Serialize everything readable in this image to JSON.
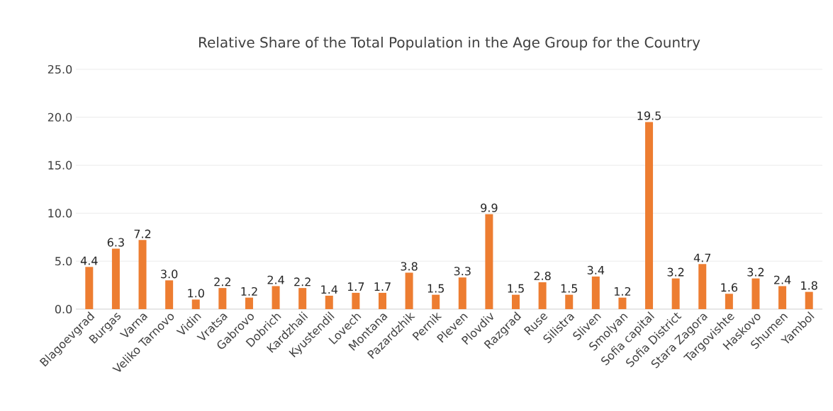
{
  "chart_data": {
    "type": "bar",
    "title": "Relative Share of the Total Population in the Age Group for the Country",
    "categories": [
      "Blagoevgrad",
      "Burgas",
      "Varna",
      "Veliko Tarnovo",
      "Vidin",
      "Vratsa",
      "Gabrovo",
      "Dobrich",
      "Kardzhali",
      "Kyustendil",
      "Lovech",
      "Montana",
      "Pazardzhik",
      "Pernik",
      "Pleven",
      "Plovdiv",
      "Razgrad",
      "Ruse",
      "Silistra",
      "Sliven",
      "Smolyan",
      "Sofia capital",
      "Sofia District",
      "Stara Zagora",
      "Targovishte",
      "Haskovo",
      "Shumen",
      "Yambol"
    ],
    "values": [
      4.4,
      6.3,
      7.2,
      3.0,
      1.0,
      2.2,
      1.2,
      2.4,
      2.2,
      1.4,
      1.7,
      1.7,
      3.8,
      1.5,
      3.3,
      9.9,
      1.5,
      2.8,
      1.5,
      3.4,
      1.2,
      19.5,
      3.2,
      4.7,
      1.6,
      3.2,
      2.4,
      1.8
    ],
    "color": "#ed7d31",
    "ylim": [
      0,
      25
    ],
    "yticks": [
      {
        "value": 0,
        "label": "0.0"
      },
      {
        "value": 5,
        "label": "5.0"
      },
      {
        "value": 10,
        "label": "10.0"
      },
      {
        "value": 15,
        "label": "15.0"
      },
      {
        "value": 20,
        "label": "20.0"
      },
      {
        "value": 25,
        "label": "25.0"
      }
    ],
    "value_labels": [
      "4.4",
      "6.3",
      "7.2",
      "3.0",
      "1.0",
      "2.2",
      "1.2",
      "2.4",
      "2.2",
      "1.4",
      "1.7",
      "1.7",
      "3.8",
      "1.5",
      "3.3",
      "9.9",
      "1.5",
      "2.8",
      "1.5",
      "3.4",
      "1.2",
      "19.5",
      "3.2",
      "4.7",
      "1.6",
      "3.2",
      "2.4",
      "1.8"
    ],
    "grid": "y"
  }
}
